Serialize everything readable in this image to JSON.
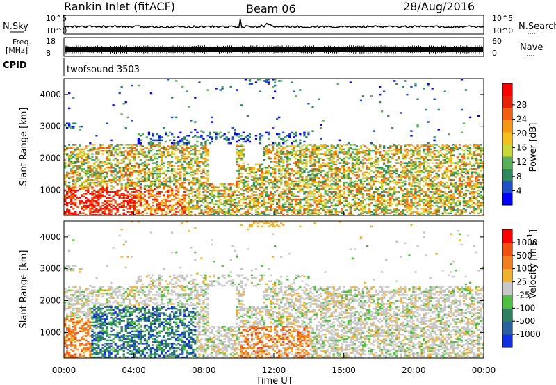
{
  "header": {
    "title": "Rankin Inlet (fitACF)",
    "beam": "Beam 06",
    "date": "28/Aug/2016"
  },
  "noise_panel": {
    "left_label": "N.Sky",
    "right_label": "N.Search",
    "left_ticks": [
      "10^5",
      "10^0"
    ],
    "right_ticks": [
      "10^5",
      "10^0"
    ]
  },
  "freq_panel": {
    "left_label_1": "Freq.",
    "left_label_2": "[MHz]",
    "right_label": "Nave",
    "left_ticks": [
      "18",
      "8"
    ],
    "right_ticks": [
      "60",
      "0"
    ]
  },
  "cpid_panel": {
    "label": "CPID",
    "program": "twofsound 3503"
  },
  "chart_data": [
    {
      "type": "heatmap",
      "name": "power",
      "ylabel": "Slant Range [km]",
      "ylim": [
        200,
        4500
      ],
      "yticks": [
        "1000",
        "2000",
        "3000",
        "4000"
      ],
      "xlim": [
        0,
        24
      ],
      "colorbar": {
        "label": "Power [dB]",
        "ticks": [
          "4",
          "8",
          "12",
          "16",
          "20",
          "24",
          "28"
        ],
        "colors": [
          "#0000ff",
          "#1e50c8",
          "#2e8a5c",
          "#58b058",
          "#c8d838",
          "#f4c020",
          "#f59818",
          "#f06010",
          "#e82008",
          "#ff0000"
        ]
      }
    },
    {
      "type": "heatmap",
      "name": "velocity",
      "ylabel": "Slant Range [km]",
      "ylim": [
        200,
        4500
      ],
      "yticks": [
        "1000",
        "2000",
        "3000",
        "4000"
      ],
      "xlim": [
        0,
        24
      ],
      "xlabel": "Time UT",
      "xticks": [
        "00:00",
        "04:00",
        "08:00",
        "12:00",
        "16:00",
        "20:00",
        "00:00"
      ],
      "colorbar": {
        "label": "Velocity",
        "unit": "[m s",
        "unit_sup": "-1",
        "unit_end": "]",
        "ticks": [
          "1000",
          "500",
          "100",
          "25",
          "-25",
          "-100",
          "-500",
          "-1000"
        ],
        "colors": [
          "#1030e0",
          "#2860a0",
          "#2e8060",
          "#50c040",
          "#c8c8c8",
          "#f0b030",
          "#f08020",
          "#f05010",
          "#ff0000"
        ]
      }
    }
  ]
}
